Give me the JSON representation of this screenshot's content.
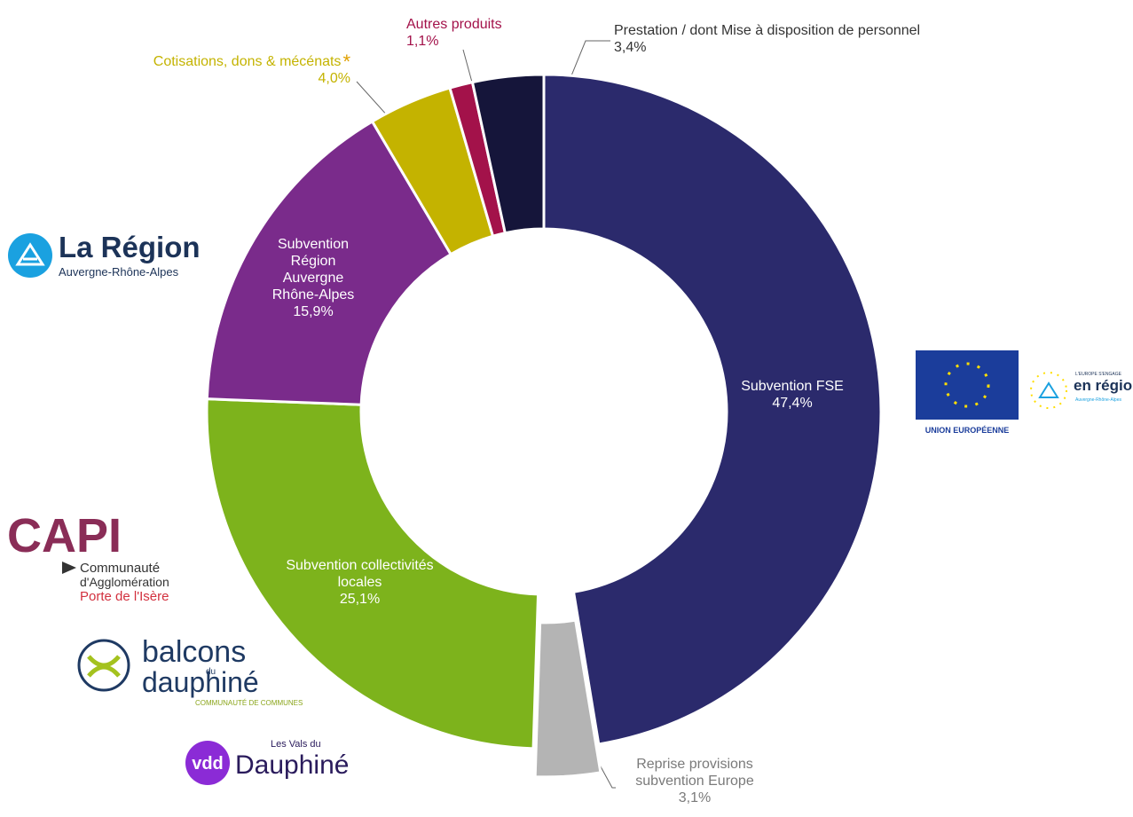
{
  "chart_data": {
    "type": "pie",
    "categories": [
      "Subvention FSE",
      "Reprise provisions subvention Europe",
      "Subvention collectivités locales",
      "Subvention Région Auvergne Rhône-Alpes",
      "Cotisations, dons & mécénats",
      "Autres produits",
      "Prestation / dont Mise à disposition de personnel"
    ],
    "values": [
      47.4,
      3.1,
      25.1,
      15.9,
      4.0,
      1.1,
      3.4
    ],
    "value_labels": [
      "47,4%",
      "3,1%",
      "25,1%",
      "15,9%",
      "4,0%",
      "1,1%",
      "3,4%"
    ],
    "colors": [
      "#2b2a6c",
      "#b4b4b4",
      "#7db31c",
      "#7a2b8b",
      "#c4b300",
      "#a3124a",
      "#15153a"
    ],
    "annotations": [
      "*"
    ]
  },
  "logos": {
    "region": {
      "name": "La Région",
      "sub": "Auvergne-Rhône-Alpes"
    },
    "capi": {
      "name": "CAPI",
      "lines": [
        "Communauté",
        "d'Agglomération",
        "Porte de l'Isère"
      ]
    },
    "balcons": {
      "name": "balcons",
      "du": "du",
      "name2": "dauphiné",
      "sub": "COMMUNAUTÉ DE COMMUNES"
    },
    "vdd": {
      "name": "vdd",
      "top": "Les Vals du",
      "name2": "Dauphiné"
    },
    "eu": {
      "name": "UNION EUROPÉENNE",
      "top": "L'EUROPE S'ENGAGE",
      "region": "en région",
      "sub": "Auvergne-Rhône-Alpes"
    }
  }
}
